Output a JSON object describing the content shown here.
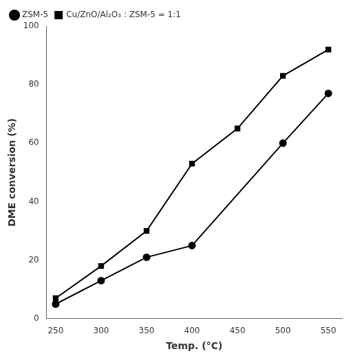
{
  "chart_data": {
    "type": "line",
    "x_label": "Temp. (°C)",
    "y_label": "DME conversion (%)",
    "series": [
      {
        "name": "ZSM-5",
        "color": "#000000",
        "marker": "circle",
        "x": [
          250,
          300,
          350,
          400,
          500,
          550
        ],
        "values": [
          5,
          13,
          21,
          25,
          60,
          77
        ]
      },
      {
        "name": "Cu/ZnO/Al₂O₃ : ZSM-5 = 1:1",
        "color": "#000000",
        "marker": "square",
        "x": [
          250,
          300,
          350,
          400,
          450,
          500,
          550
        ],
        "values": [
          7,
          18,
          30,
          53,
          65,
          83,
          92
        ]
      }
    ],
    "xlim": [
      240,
      565
    ],
    "ylim": [
      0,
      100
    ],
    "xticks": [
      250,
      300,
      350,
      400,
      450,
      500,
      550
    ],
    "yticks": [
      0,
      20,
      40,
      60,
      80,
      100
    ],
    "grid": false,
    "legend": "upper left"
  }
}
